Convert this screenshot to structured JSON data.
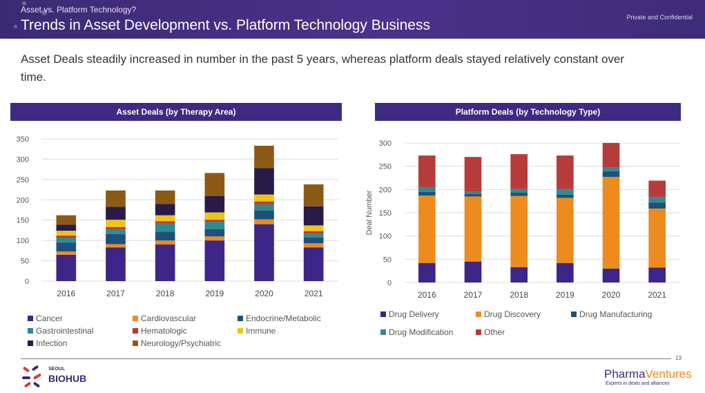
{
  "header": {
    "eyebrow": "Asset vs. Platform Technology?",
    "title": "Trends in Asset Development vs. Platform Technology Business",
    "confidential": "Private and Confidential"
  },
  "headline": "Asset Deals steadily increased in number in the past 5 years, whereas platform deals stayed relatively constant over time.",
  "footer": {
    "page_number": "13",
    "left_logo_small": "SEOUL",
    "left_logo_main": "BIOHUB",
    "right_logo_part1": "Pharma",
    "right_logo_part2": "Ventures",
    "right_logo_tagline": "Experts in deals and alliances"
  },
  "chart_data": [
    {
      "type": "bar",
      "stacked": true,
      "title": "Asset Deals (by Therapy Area)",
      "xlabel": "",
      "ylabel": "",
      "categories": [
        "2016",
        "2017",
        "2018",
        "2019",
        "2020",
        "2021"
      ],
      "ylim": [
        0,
        350
      ],
      "yticks": [
        0,
        50,
        100,
        150,
        200,
        250,
        300,
        350
      ],
      "grid": true,
      "legend_position": "bottom",
      "series": [
        {
          "name": "Cancer",
          "color": "#3d2688",
          "values": [
            65,
            83,
            90,
            100,
            140,
            83
          ]
        },
        {
          "name": "Cardiovascular",
          "color": "#ee8b1f",
          "values": [
            8,
            8,
            10,
            10,
            12,
            10
          ]
        },
        {
          "name": "Endocrine/Metabolic",
          "color": "#1f4f7c",
          "values": [
            22,
            25,
            22,
            18,
            22,
            14
          ]
        },
        {
          "name": "Gastrointestinal",
          "color": "#2f8c8f",
          "values": [
            12,
            12,
            20,
            18,
            15,
            10
          ]
        },
        {
          "name": "Hematologic",
          "color": "#bd3836",
          "values": [
            5,
            5,
            5,
            5,
            7,
            6
          ]
        },
        {
          "name": "Immune",
          "color": "#edc614",
          "values": [
            12,
            18,
            15,
            18,
            17,
            14
          ]
        },
        {
          "name": "Infection",
          "color": "#291a48",
          "values": [
            15,
            32,
            28,
            40,
            65,
            47
          ]
        },
        {
          "name": "Neurology/Psychiatric",
          "color": "#8d5a16",
          "values": [
            23,
            40,
            33,
            57,
            55,
            54
          ]
        }
      ]
    },
    {
      "type": "bar",
      "stacked": true,
      "title": "Platform Deals (by Technology Type)",
      "xlabel": "",
      "ylabel": "Deal Number",
      "categories": [
        "2016",
        "2017",
        "2018",
        "2019",
        "2020",
        "2021"
      ],
      "ylim": [
        0,
        300
      ],
      "yticks": [
        0,
        50,
        100,
        150,
        200,
        250,
        300
      ],
      "grid": true,
      "legend_position": "bottom",
      "series": [
        {
          "name": "Drug Delivery",
          "color": "#3d2688",
          "values": [
            42,
            45,
            33,
            42,
            30,
            32
          ]
        },
        {
          "name": "Drug Discovery",
          "color": "#ee8b1f",
          "values": [
            145,
            140,
            153,
            140,
            197,
            127
          ]
        },
        {
          "name": "Drug Manufacturing",
          "color": "#1f4f7c",
          "values": [
            8,
            5,
            7,
            7,
            12,
            13
          ]
        },
        {
          "name": "Drug Modification",
          "color": "#2f8c8f",
          "values": [
            10,
            5,
            8,
            12,
            8,
            12
          ]
        },
        {
          "name": "Other",
          "color": "#b83b3b",
          "values": [
            68,
            75,
            75,
            72,
            53,
            35
          ]
        }
      ]
    }
  ]
}
